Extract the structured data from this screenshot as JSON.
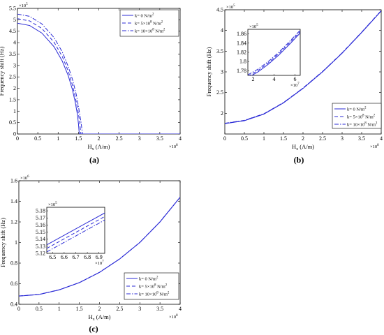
{
  "chart_data": [
    {
      "panel_label": "(a)",
      "type": "line",
      "xlabel": "H",
      "xlabel_sub": "x",
      "xlabel_unit": " (A/m)",
      "ylabel": "Frequency shift (Hz)",
      "x_exponent": "×10",
      "x_exponent_power": "8",
      "y_exponent": "×10",
      "y_exponent_power": "5",
      "xlim": [
        0,
        4
      ],
      "ylim": [
        0,
        5.5
      ],
      "xticks": [
        0,
        0.5,
        1,
        1.5,
        2,
        2.5,
        3,
        3.5,
        4
      ],
      "yticks": [
        0,
        0.5,
        1,
        1.5,
        2,
        2.5,
        3,
        3.5,
        4,
        4.5,
        5,
        5.5
      ],
      "legend_position": "top-right",
      "x_units_note": "x values are in units of 1e8 A/m, y values in units of 1e5 Hz",
      "series": [
        {
          "name": "k= 0 N/m",
          "name_sup": "2",
          "style": "solid",
          "x": [
            0,
            0.3,
            0.6,
            0.9,
            1.1,
            1.25,
            1.35,
            1.42,
            1.47,
            1.5,
            1.52,
            1.6,
            2,
            3,
            4
          ],
          "y": [
            4.85,
            4.75,
            4.42,
            3.82,
            3.2,
            2.55,
            1.95,
            1.4,
            0.9,
            0.45,
            0,
            0,
            0,
            0,
            0
          ]
        },
        {
          "name": "k= 5×10",
          "name_sup": "8",
          "name_tail": " N/m",
          "name_tail_sup": "2",
          "style": "dashed",
          "x": [
            0,
            0.3,
            0.6,
            0.9,
            1.1,
            1.25,
            1.35,
            1.43,
            1.49,
            1.53,
            1.56,
            1.6,
            2,
            3,
            4
          ],
          "y": [
            5.05,
            4.95,
            4.62,
            4.02,
            3.4,
            2.75,
            2.15,
            1.55,
            1.0,
            0.5,
            0,
            0,
            0,
            0,
            0
          ]
        },
        {
          "name": "k= 10×10",
          "name_sup": "8",
          "name_tail": " N/m",
          "name_tail_sup": "2",
          "style": "dashdot",
          "x": [
            0,
            0.3,
            0.6,
            0.9,
            1.1,
            1.25,
            1.36,
            1.45,
            1.51,
            1.56,
            1.6,
            1.65,
            2,
            3,
            4
          ],
          "y": [
            5.25,
            5.15,
            4.82,
            4.22,
            3.6,
            2.95,
            2.35,
            1.7,
            1.1,
            0.55,
            0,
            0,
            0,
            0,
            0
          ]
        }
      ]
    },
    {
      "panel_label": "(b)",
      "type": "line",
      "xlabel": "H",
      "xlabel_sub": "x",
      "xlabel_unit": " (A/m)",
      "ylabel": "Frequency shift (Hz)",
      "x_exponent": "×10",
      "x_exponent_power": "8",
      "y_exponent": "×10",
      "y_exponent_power": "5",
      "xlim": [
        0,
        4
      ],
      "ylim": [
        1.5,
        4.5
      ],
      "xticks": [
        0,
        0.5,
        1,
        1.5,
        2,
        2.5,
        3,
        3.5,
        4
      ],
      "yticks": [
        2,
        2.5,
        3,
        3.5,
        4,
        4.5
      ],
      "legend_position": "bottom-right",
      "series": [
        {
          "name": "k= 0 N/m",
          "name_sup": "2",
          "style": "solid",
          "x": [
            0,
            0.5,
            1,
            1.5,
            2,
            2.5,
            3,
            3.5,
            4
          ],
          "y": [
            1.75,
            1.82,
            1.98,
            2.25,
            2.6,
            3.0,
            3.45,
            3.95,
            4.47
          ]
        },
        {
          "name": "k= 5×10",
          "name_sup": "8",
          "name_tail": " N/m",
          "name_tail_sup": "2",
          "style": "dashed",
          "x": [
            0,
            0.5,
            1,
            1.5,
            2,
            2.5,
            3,
            3.5,
            4
          ],
          "y": [
            1.755,
            1.825,
            1.985,
            2.255,
            2.605,
            3.005,
            3.455,
            3.955,
            4.475
          ]
        },
        {
          "name": "k= 10×10",
          "name_sup": "8",
          "name_tail": " N/m",
          "name_tail_sup": "2",
          "style": "dashdot",
          "x": [
            0,
            0.5,
            1,
            1.5,
            2,
            2.5,
            3,
            3.5,
            4
          ],
          "y": [
            1.76,
            1.83,
            1.99,
            2.26,
            2.61,
            3.01,
            3.46,
            3.96,
            4.48
          ]
        }
      ],
      "inset": {
        "xlim": [
          1.5,
          6.5
        ],
        "ylim": [
          1.77,
          1.87
        ],
        "xticks": [
          2,
          4,
          6
        ],
        "yticks": [
          1.78,
          1.8,
          1.82,
          1.84,
          1.86
        ],
        "x_exponent": "×10",
        "x_exponent_power": "7",
        "y_exponent": "×10",
        "y_exponent_power": "5",
        "series": [
          {
            "style": "solid",
            "x": [
              1.5,
              2.5,
              3.5,
              4.5,
              5.5,
              6.5
            ],
            "y": [
              1.765,
              1.778,
              1.795,
              1.815,
              1.838,
              1.862
            ]
          },
          {
            "style": "dashed",
            "x": [
              1.5,
              2.5,
              3.5,
              4.5,
              5.5,
              6.5
            ],
            "y": [
              1.768,
              1.781,
              1.798,
              1.818,
              1.841,
              1.865
            ]
          },
          {
            "style": "dashdot",
            "x": [
              1.5,
              2.5,
              3.5,
              4.5,
              5.5,
              6.5
            ],
            "y": [
              1.771,
              1.784,
              1.801,
              1.821,
              1.844,
              1.868
            ]
          }
        ]
      }
    },
    {
      "panel_label": "(c)",
      "type": "line",
      "xlabel": "H",
      "xlabel_sub": "x",
      "xlabel_unit": " (A/m)",
      "ylabel": "Frequency shift (Hz)",
      "x_exponent": "×10",
      "x_exponent_power": "8",
      "y_exponent": "×10",
      "y_exponent_power": "6",
      "xlim": [
        0,
        4
      ],
      "ylim": [
        0.4,
        1.6
      ],
      "xticks": [
        0,
        0.5,
        1,
        1.5,
        2,
        2.5,
        3,
        3.5,
        4
      ],
      "yticks": [
        0.4,
        0.6,
        0.8,
        1,
        1.2,
        1.4,
        1.6
      ],
      "legend_position": "bottom-right",
      "series": [
        {
          "name": "k= 0 N/m",
          "name_sup": "2",
          "style": "solid",
          "x": [
            0,
            0.5,
            1,
            1.5,
            2,
            2.5,
            3,
            3.5,
            4
          ],
          "y": [
            0.48,
            0.495,
            0.54,
            0.61,
            0.71,
            0.84,
            1.0,
            1.2,
            1.44
          ]
        },
        {
          "name": "k= 5×10",
          "name_sup": "8",
          "name_tail": " N/m",
          "name_tail_sup": "2",
          "style": "dashed",
          "x": [
            0,
            0.5,
            1,
            1.5,
            2,
            2.5,
            3,
            3.5,
            4
          ],
          "y": [
            0.4805,
            0.4955,
            0.5405,
            0.6105,
            0.7105,
            0.8405,
            1.0005,
            1.2005,
            1.4405
          ]
        },
        {
          "name": "k= 10×10",
          "name_sup": "8",
          "name_tail": " N/m",
          "name_tail_sup": "2",
          "style": "dashdot",
          "x": [
            0,
            0.5,
            1,
            1.5,
            2,
            2.5,
            3,
            3.5,
            4
          ],
          "y": [
            0.481,
            0.496,
            0.541,
            0.611,
            0.711,
            0.841,
            1.001,
            1.201,
            1.441
          ]
        }
      ],
      "inset": {
        "xlim": [
          6.45,
          6.95
        ],
        "ylim": [
          5.12,
          5.185
        ],
        "xticks": [
          6.5,
          6.6,
          6.7,
          6.8,
          6.9
        ],
        "yticks": [
          5.12,
          5.13,
          5.14,
          5.15,
          5.16,
          5.17,
          5.18
        ],
        "x_exponent": "×10",
        "x_exponent_power": "7",
        "y_exponent": "×10",
        "y_exponent_power": "5",
        "series": [
          {
            "style": "solid",
            "x": [
              6.45,
              6.95
            ],
            "y": [
              5.132,
              5.177
            ]
          },
          {
            "style": "dashed",
            "x": [
              6.45,
              6.95
            ],
            "y": [
              5.127,
              5.172
            ]
          },
          {
            "style": "dashdot",
            "x": [
              6.45,
              6.95
            ],
            "y": [
              5.122,
              5.167
            ]
          }
        ]
      }
    }
  ]
}
